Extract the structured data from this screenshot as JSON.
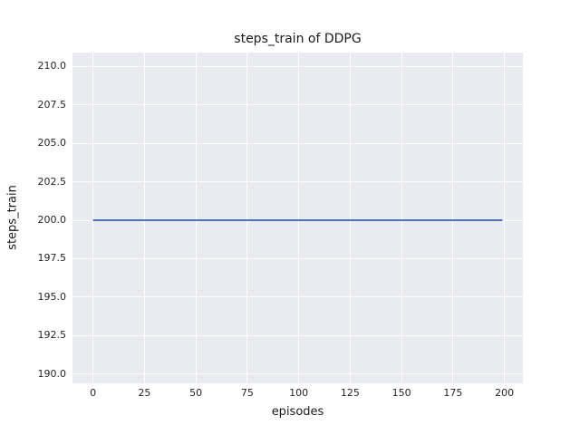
{
  "chart_data": {
    "type": "line",
    "title": "steps_train of DDPG",
    "xlabel": "episodes",
    "ylabel": "steps_train",
    "x_ticks": [
      0,
      25,
      50,
      75,
      100,
      125,
      150,
      175,
      200
    ],
    "x_tick_labels": [
      "0",
      "25",
      "50",
      "75",
      "100",
      "125",
      "150",
      "175",
      "200"
    ],
    "y_ticks": [
      190.0,
      192.5,
      195.0,
      197.5,
      200.0,
      202.5,
      205.0,
      207.5,
      210.0
    ],
    "y_tick_labels": [
      "190.0",
      "192.5",
      "195.0",
      "197.5",
      "200.0",
      "202.5",
      "205.0",
      "207.5",
      "210.0"
    ],
    "xlim": [
      -9.95,
      208.95
    ],
    "ylim": [
      189.4,
      210.9
    ],
    "grid": true,
    "legend": false,
    "style": "seaborn-darkgrid",
    "colors": {
      "plot_background": "#eaeaf2",
      "grid": "#ffffff",
      "line": "#4c72b0",
      "text": "#262626"
    },
    "series": [
      {
        "name": "steps_train",
        "x": [
          0,
          199
        ],
        "y": [
          200,
          200
        ],
        "color": "#4c72b0",
        "line_width": 2,
        "note": "constant value 200 for all episodes 0-199"
      }
    ]
  }
}
